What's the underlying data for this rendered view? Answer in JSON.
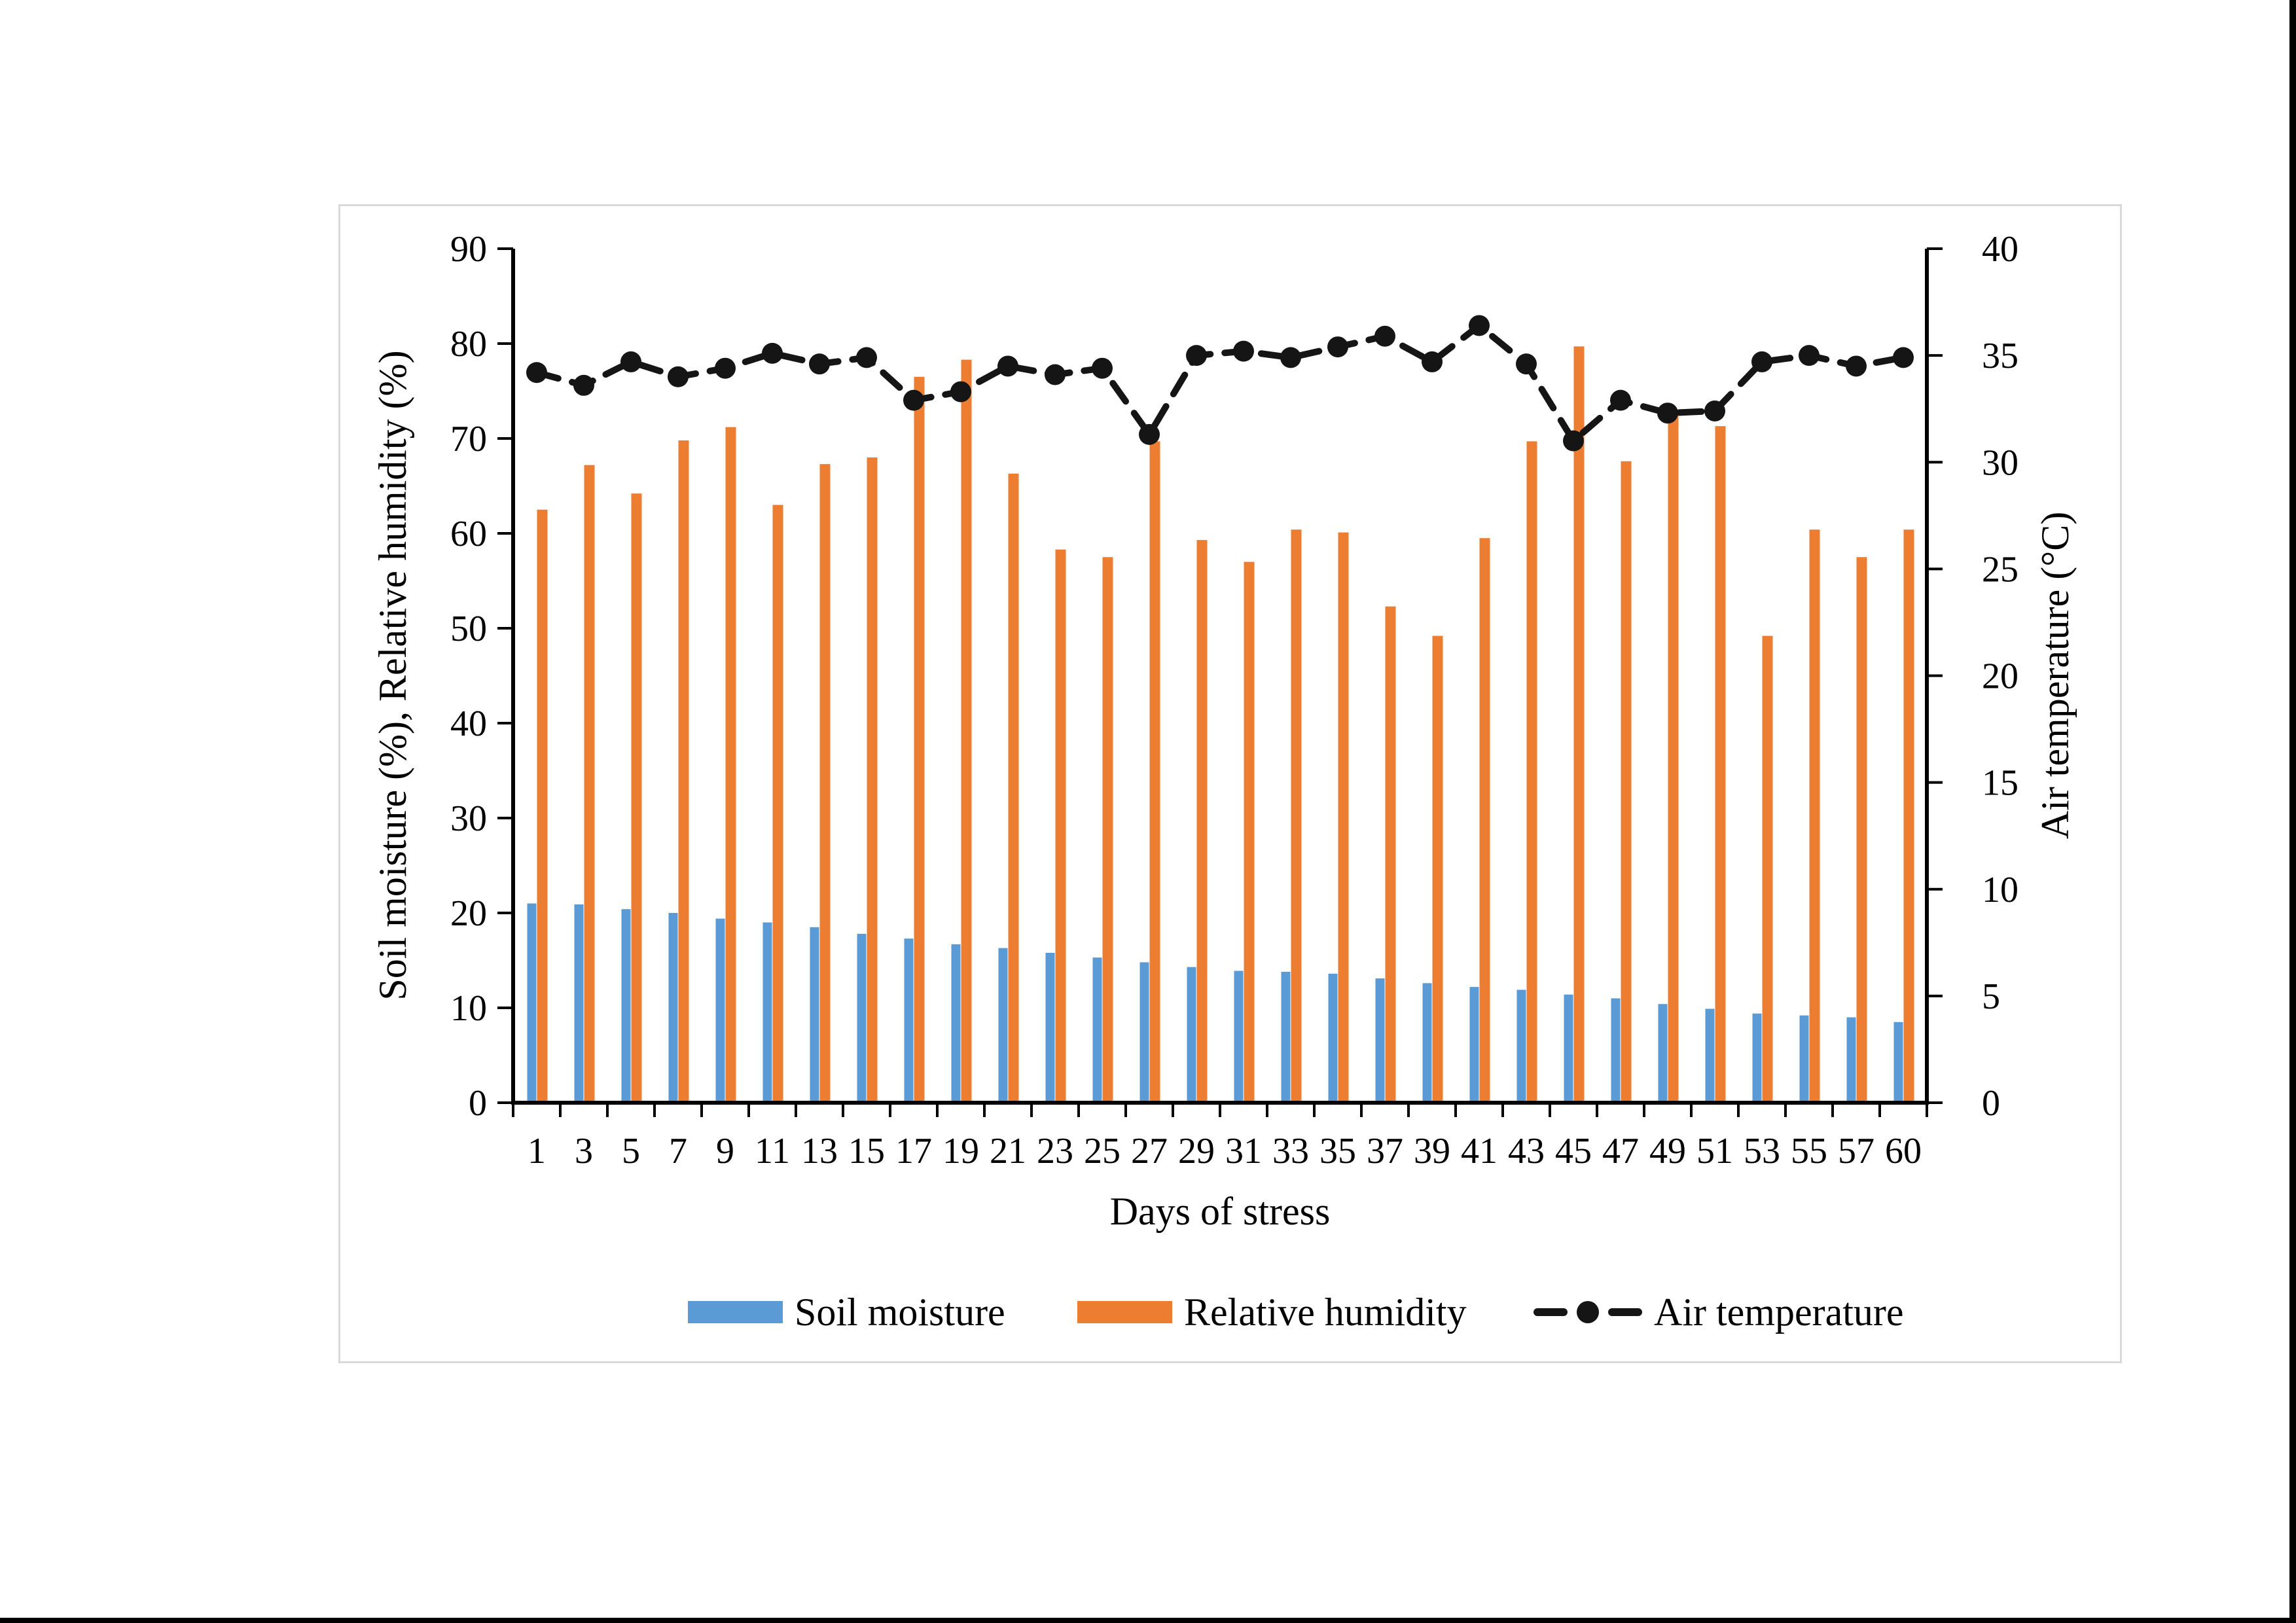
{
  "page": {
    "background": "#ffffff",
    "edge_border_color": "#000000",
    "panel_border_color": "#d9d9d9"
  },
  "chart_data": {
    "type": "bar",
    "subtype": "clustered-bars-with-dashed-marker-line",
    "title": "",
    "grid": "off",
    "categories": [
      "1",
      "3",
      "5",
      "7",
      "9",
      "11",
      "13",
      "15",
      "17",
      "19",
      "21",
      "23",
      "25",
      "27",
      "29",
      "31",
      "33",
      "35",
      "37",
      "39",
      "41",
      "43",
      "45",
      "47",
      "49",
      "51",
      "53",
      "55",
      "57",
      "60"
    ],
    "x_axis": {
      "label": "Days of stress"
    },
    "y_left": {
      "label": "Soil moisture (%), Relative humidity (%)",
      "min": 0,
      "max": 90,
      "step": 10
    },
    "y_right": {
      "label": "Air temperature (°C)",
      "min": 0,
      "max": 40,
      "step": 5
    },
    "legend": {
      "position": "bottom",
      "entries": [
        "Soil moisture",
        "Relative humidity",
        "Air temperature"
      ]
    },
    "series": [
      {
        "name": "Soil moisture",
        "type": "bar",
        "axis": "left",
        "color": "#5B9BD5",
        "values": [
          21.0,
          20.9,
          20.4,
          20.0,
          19.4,
          19.0,
          18.5,
          17.8,
          17.3,
          16.7,
          16.3,
          15.8,
          15.3,
          14.8,
          14.3,
          13.9,
          13.8,
          13.6,
          13.1,
          12.6,
          12.2,
          11.9,
          11.4,
          11.0,
          10.4,
          9.9,
          9.4,
          9.2,
          9.0,
          8.5
        ]
      },
      {
        "name": "Relative humidity",
        "type": "bar",
        "axis": "left",
        "color": "#ED7D31",
        "values": [
          62.5,
          67.2,
          64.2,
          69.8,
          71.2,
          63.0,
          67.3,
          68.0,
          76.5,
          78.3,
          66.3,
          58.3,
          57.5,
          69.7,
          59.3,
          57.0,
          60.4,
          60.1,
          52.3,
          49.2,
          59.5,
          69.7,
          79.7,
          67.6,
          72.4,
          71.3,
          49.2,
          60.4,
          57.5,
          60.4
        ]
      },
      {
        "name": "Air temperature",
        "type": "line",
        "axis": "right",
        "color": "#151515",
        "style": "dashed-with-round-markers",
        "values": [
          34.2,
          33.6,
          34.7,
          34.0,
          34.4,
          35.1,
          34.6,
          34.9,
          32.9,
          33.3,
          34.5,
          34.1,
          34.4,
          31.3,
          35.0,
          35.2,
          34.9,
          35.4,
          35.9,
          34.7,
          36.4,
          34.6,
          31.0,
          32.9,
          32.3,
          32.4,
          34.7,
          35.0,
          34.5,
          34.9
        ]
      }
    ]
  }
}
